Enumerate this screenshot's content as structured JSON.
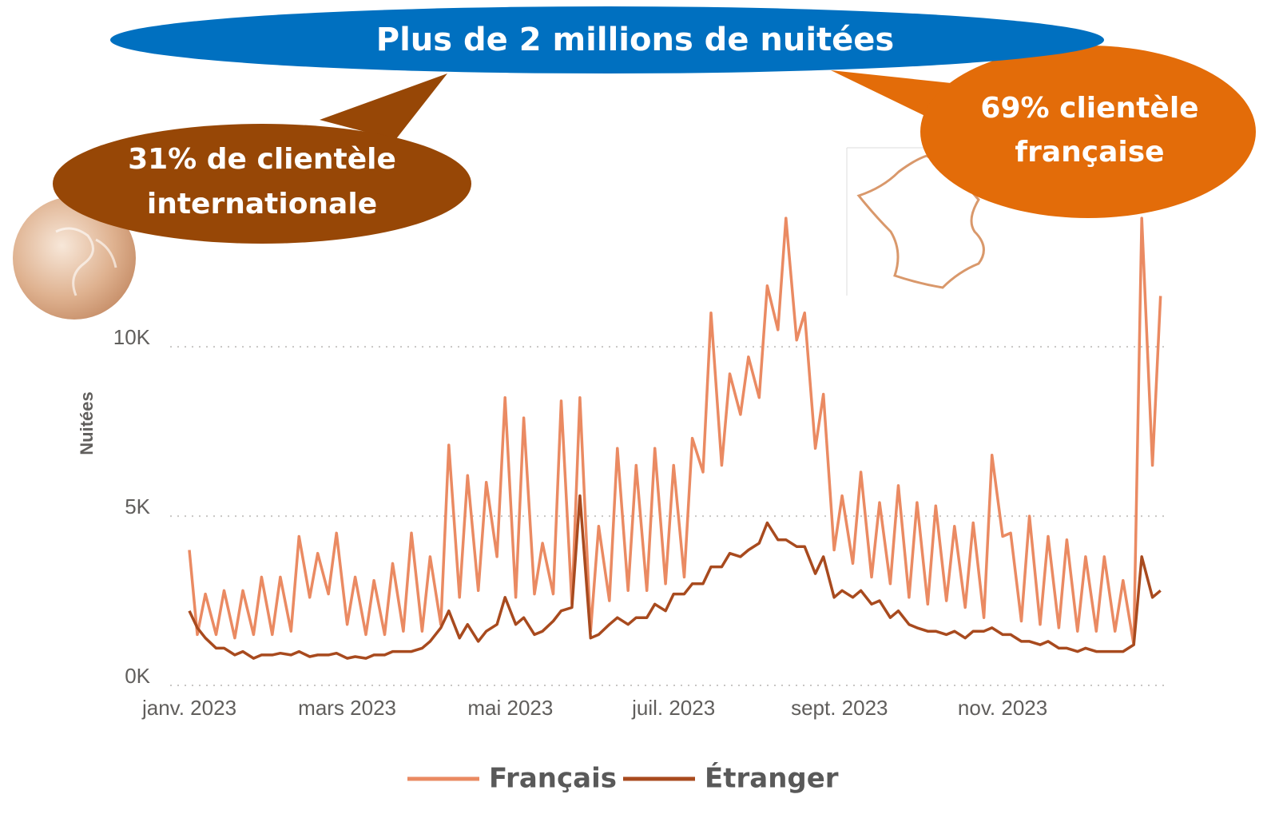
{
  "chart_data": {
    "type": "line",
    "title": "Plus de 2 millions de nuitées",
    "annotations": [
      {
        "lines": [
          "31% de clientèle",
          "internationale"
        ]
      },
      {
        "lines": [
          "69% clientèle",
          "française"
        ]
      }
    ],
    "y_label": "Nuitées",
    "xlim": [
      1,
      365
    ],
    "xticks": [
      {
        "value": 1,
        "label": "janv. 2023"
      },
      {
        "value": 60,
        "label": "mars 2023"
      },
      {
        "value": 121,
        "label": "mai 2023"
      },
      {
        "value": 182,
        "label": "juil. 2023"
      },
      {
        "value": 244,
        "label": "sept. 2023"
      },
      {
        "value": 305,
        "label": "nov. 2023"
      }
    ],
    "ylim": [
      0,
      15500
    ],
    "yticks": [
      {
        "value": 0,
        "label": "0K"
      },
      {
        "value": 5000,
        "label": "5K"
      },
      {
        "value": 10000,
        "label": "10K"
      }
    ],
    "grid": true,
    "legend": "bottom",
    "x": [
      1,
      4,
      7,
      11,
      14,
      18,
      21,
      25,
      28,
      32,
      35,
      39,
      42,
      46,
      49,
      53,
      56,
      60,
      63,
      67,
      70,
      74,
      77,
      81,
      84,
      88,
      91,
      95,
      98,
      102,
      105,
      109,
      112,
      116,
      119,
      123,
      126,
      130,
      133,
      137,
      140,
      144,
      147,
      151,
      154,
      158,
      161,
      165,
      168,
      172,
      175,
      179,
      182,
      186,
      189,
      193,
      196,
      200,
      203,
      207,
      210,
      214,
      217,
      221,
      224,
      228,
      231,
      235,
      238,
      242,
      245,
      249,
      252,
      256,
      259,
      263,
      266,
      270,
      273,
      277,
      280,
      284,
      287,
      291,
      294,
      298,
      301,
      305,
      308,
      312,
      315,
      319,
      322,
      326,
      329,
      333,
      336,
      340,
      343,
      347,
      350,
      354,
      357,
      361,
      364
    ],
    "series": [
      {
        "name": "Français",
        "color": "#ea8a62",
        "values": [
          4000,
          1500,
          2700,
          1500,
          2800,
          1400,
          2800,
          1500,
          3200,
          1500,
          3200,
          1600,
          4400,
          2600,
          3900,
          2700,
          4500,
          1800,
          3200,
          1500,
          3100,
          1500,
          3600,
          1600,
          4500,
          1600,
          3800,
          1800,
          7100,
          2600,
          6200,
          2800,
          6000,
          3800,
          8500,
          2600,
          7900,
          2700,
          4200,
          2700,
          8400,
          2400,
          8500,
          1600,
          4700,
          2500,
          7000,
          2800,
          6500,
          2800,
          7000,
          3000,
          6500,
          3200,
          7300,
          6300,
          11000,
          6500,
          9200,
          8000,
          9700,
          8500,
          11800,
          10500,
          13800,
          10200,
          11000,
          7000,
          8600,
          4000,
          5600,
          3600,
          6300,
          3200,
          5400,
          3000,
          5900,
          2600,
          5400,
          2400,
          5300,
          2500,
          4700,
          2300,
          4800,
          2000,
          6800,
          4400,
          4500,
          1900,
          5000,
          1800,
          4400,
          1700,
          4300,
          1600,
          3800,
          1600,
          3800,
          1600,
          3100,
          1200,
          13800,
          6500,
          11500
        ]
      },
      {
        "name": "Étranger",
        "color": "#a84a1e",
        "values": [
          2200,
          1700,
          1400,
          1100,
          1100,
          900,
          1000,
          800,
          900,
          900,
          950,
          900,
          1000,
          850,
          900,
          900,
          950,
          800,
          850,
          800,
          900,
          900,
          1000,
          1000,
          1000,
          1100,
          1300,
          1700,
          2200,
          1400,
          1800,
          1300,
          1600,
          1800,
          2600,
          1800,
          2000,
          1500,
          1600,
          1900,
          2200,
          2300,
          5600,
          1400,
          1500,
          1800,
          2000,
          1800,
          2000,
          2000,
          2400,
          2200,
          2700,
          2700,
          3000,
          3000,
          3500,
          3500,
          3900,
          3800,
          4000,
          4200,
          4800,
          4300,
          4300,
          4100,
          4100,
          3300,
          3800,
          2600,
          2800,
          2600,
          2800,
          2400,
          2500,
          2000,
          2200,
          1800,
          1700,
          1600,
          1600,
          1500,
          1600,
          1400,
          1600,
          1600,
          1700,
          1500,
          1500,
          1300,
          1300,
          1200,
          1300,
          1100,
          1100,
          1000,
          1100,
          1000,
          1000,
          1000,
          1000,
          1200,
          3800,
          2600,
          2800
        ]
      }
    ]
  }
}
